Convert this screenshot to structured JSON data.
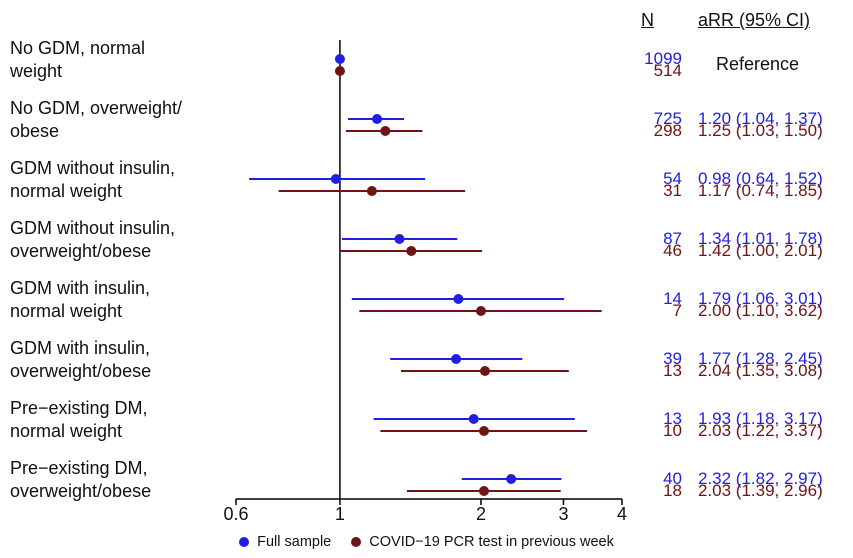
{
  "header": {
    "n_label": "N",
    "arr_label": "aRR (95% CI)"
  },
  "reference_text": "Reference",
  "chart_data": {
    "type": "forest",
    "x_scale": "log",
    "xlim": [
      0.6,
      4
    ],
    "x_ticks": [
      0.6,
      1,
      2,
      3,
      4
    ],
    "x_tick_labels": [
      "0.6",
      "1",
      "2",
      "3",
      "4"
    ],
    "reference_line": 1,
    "categories": [
      {
        "line1": "No GDM, normal",
        "line2": "weight"
      },
      {
        "line1": "No GDM, overweight/",
        "line2": "obese"
      },
      {
        "line1": "GDM without insulin,",
        "line2": "normal weight"
      },
      {
        "line1": "GDM without insulin,",
        "line2": "overweight/obese"
      },
      {
        "line1": "GDM with insulin,",
        "line2": "normal weight"
      },
      {
        "line1": "GDM with insulin,",
        "line2": "overweight/obese"
      },
      {
        "line1": "Pre−existing DM,",
        "line2": "normal weight"
      },
      {
        "line1": "Pre−existing DM,",
        "line2": "overweight/obese"
      }
    ],
    "series": [
      {
        "name": "Full sample",
        "color": "#1f1fe0",
        "n": [
          "1099",
          "725",
          "54",
          "87",
          "14",
          "39",
          "13",
          "40"
        ],
        "est": [
          1.0,
          1.2,
          0.98,
          1.34,
          1.79,
          1.77,
          1.93,
          2.32
        ],
        "lo": [
          1.0,
          1.04,
          0.64,
          1.01,
          1.06,
          1.28,
          1.18,
          1.82
        ],
        "hi": [
          1.0,
          1.37,
          1.52,
          1.78,
          3.01,
          2.45,
          3.17,
          2.97
        ],
        "ci_text": [
          "",
          "1.20 (1.04, 1.37)",
          "0.98 (0.64, 1.52)",
          "1.34 (1.01, 1.78)",
          "1.79 (1.06, 3.01)",
          "1.77 (1.28, 2.45)",
          "1.93 (1.18, 3.17)",
          "2.32 (1.82, 2.97)"
        ]
      },
      {
        "name": "COVID−19 PCR test in previous week",
        "color": "#6e1414",
        "n": [
          "514",
          "298",
          "31",
          "46",
          "7",
          "13",
          "10",
          "18"
        ],
        "est": [
          1.0,
          1.25,
          1.17,
          1.42,
          2.0,
          2.04,
          2.03,
          2.03
        ],
        "lo": [
          1.0,
          1.03,
          0.74,
          1.0,
          1.1,
          1.35,
          1.22,
          1.39
        ],
        "hi": [
          1.0,
          1.5,
          1.85,
          2.01,
          3.62,
          3.08,
          3.37,
          2.96
        ],
        "ci_text": [
          "",
          "1.25 (1.03, 1.50)",
          "1.17 (0.74, 1.85)",
          "1.42 (1.00, 2.01)",
          "2.00 (1.10, 3.62)",
          "2.04 (1.35, 3.08)",
          "2.03 (1.22, 3.37)",
          "2.03 (1.39, 2.96)"
        ]
      }
    ],
    "legend_position": "bottom"
  }
}
